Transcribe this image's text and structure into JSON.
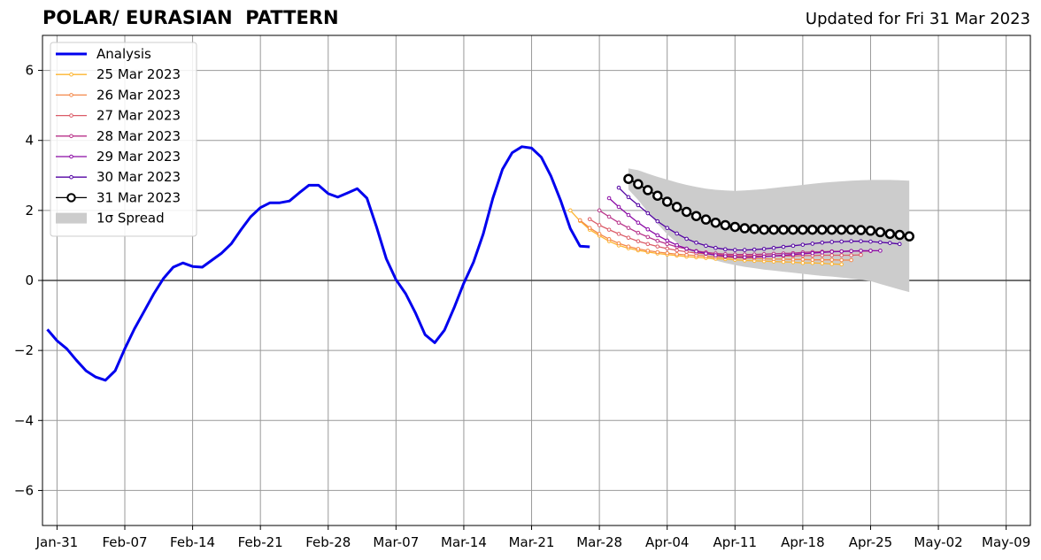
{
  "header": {
    "title": "POLAR/ EURASIAN  PATTERN",
    "updated": "Updated for Fri 31 Mar 2023"
  },
  "chart_data": {
    "type": "line",
    "title": "POLAR/ EURASIAN  PATTERN",
    "subtitle": "Updated for Fri 31 Mar 2023",
    "xlabel": "",
    "ylabel": "",
    "x_range_days": [
      -1.5,
      100.5
    ],
    "ylim": [
      -7,
      7
    ],
    "x_ticks": [
      {
        "day": 0,
        "label": "Jan-31"
      },
      {
        "day": 7,
        "label": "Feb-07"
      },
      {
        "day": 14,
        "label": "Feb-14"
      },
      {
        "day": 21,
        "label": "Feb-21"
      },
      {
        "day": 28,
        "label": "Feb-28"
      },
      {
        "day": 35,
        "label": "Mar-07"
      },
      {
        "day": 42,
        "label": "Mar-14"
      },
      {
        "day": 49,
        "label": "Mar-21"
      },
      {
        "day": 56,
        "label": "Mar-28"
      },
      {
        "day": 63,
        "label": "Apr-04"
      },
      {
        "day": 70,
        "label": "Apr-11"
      },
      {
        "day": 77,
        "label": "Apr-18"
      },
      {
        "day": 84,
        "label": "Apr-25"
      },
      {
        "day": 91,
        "label": "May-02"
      },
      {
        "day": 98,
        "label": "May-09"
      }
    ],
    "y_ticks": [
      {
        "value": 6,
        "label": "6"
      },
      {
        "value": 4,
        "label": "4"
      },
      {
        "value": 2,
        "label": "2"
      },
      {
        "value": 0,
        "label": "0"
      },
      {
        "value": -2,
        "label": "−2"
      },
      {
        "value": -4,
        "label": "−4"
      },
      {
        "value": -6,
        "label": "−6"
      }
    ],
    "grid": true,
    "legend_position": "top-left",
    "legend": [
      {
        "label": "Analysis",
        "kind": "line",
        "color": "#0000ee"
      },
      {
        "label": "25 Mar 2023",
        "kind": "marker",
        "color": "#fdb42f"
      },
      {
        "label": "26 Mar 2023",
        "kind": "marker",
        "color": "#f48849"
      },
      {
        "label": "27 Mar 2023",
        "kind": "marker",
        "color": "#db5c68"
      },
      {
        "label": "28 Mar 2023",
        "kind": "marker",
        "color": "#b83289"
      },
      {
        "label": "29 Mar 2023",
        "kind": "marker",
        "color": "#8b0aa5"
      },
      {
        "label": "30 Mar 2023",
        "kind": "marker",
        "color": "#5302a3"
      },
      {
        "label": "31 Mar 2023",
        "kind": "big",
        "color": "#000000"
      },
      {
        "label": "1σ Spread",
        "kind": "patch",
        "color": "#cccccc"
      }
    ],
    "analysis": {
      "name": "Analysis",
      "color": "#0000ee",
      "x": [
        -1,
        0,
        1,
        2,
        3,
        4,
        5,
        6,
        7,
        8,
        9,
        10,
        11,
        12,
        13,
        14,
        15,
        16,
        17,
        18,
        19,
        20,
        21,
        22,
        23,
        24,
        25,
        26,
        27,
        28,
        29,
        30,
        31,
        32,
        33,
        34,
        35,
        36,
        37,
        38,
        39,
        40,
        41,
        42,
        43,
        44,
        45,
        46,
        47,
        48,
        49,
        50,
        51,
        52,
        53,
        54,
        55
      ],
      "values": [
        -1.4,
        -1.72,
        -1.95,
        -2.28,
        -2.58,
        -2.76,
        -2.85,
        -2.58,
        -1.95,
        -1.38,
        -0.88,
        -0.38,
        0.06,
        0.38,
        0.5,
        0.4,
        0.38,
        0.58,
        0.78,
        1.05,
        1.45,
        1.82,
        2.08,
        2.22,
        2.22,
        2.27,
        2.5,
        2.72,
        2.72,
        2.48,
        2.38,
        2.5,
        2.62,
        2.35,
        1.52,
        0.62,
        0.02,
        -0.38,
        -0.92,
        -1.55,
        -1.78,
        -1.42,
        -0.78,
        -0.08,
        0.52,
        1.32,
        2.35,
        3.18,
        3.65,
        3.82,
        3.78,
        3.52,
        2.98,
        2.28,
        1.48,
        0.98,
        0.96
      ]
    },
    "forecasts": [
      {
        "name": "25 Mar 2023",
        "color": "#fdb42f",
        "x_start": 53,
        "values": [
          2.0,
          1.7,
          1.45,
          1.28,
          1.12,
          1.0,
          0.92,
          0.86,
          0.81,
          0.77,
          0.74,
          0.71,
          0.68,
          0.66,
          0.64,
          0.62,
          0.61,
          0.59,
          0.57,
          0.56,
          0.55,
          0.54,
          0.53,
          0.52,
          0.5,
          0.5,
          0.49,
          0.47,
          0.46
        ]
      },
      {
        "name": "26 Mar 2023",
        "color": "#f48849",
        "x_start": 54,
        "values": [
          1.72,
          1.5,
          1.33,
          1.18,
          1.06,
          0.97,
          0.9,
          0.85,
          0.81,
          0.78,
          0.75,
          0.73,
          0.71,
          0.69,
          0.67,
          0.66,
          0.65,
          0.64,
          0.63,
          0.62,
          0.61,
          0.61,
          0.6,
          0.6,
          0.59,
          0.59,
          0.59,
          0.58,
          0.58
        ]
      },
      {
        "name": "27 Mar 2023",
        "color": "#db5c68",
        "x_start": 55,
        "values": [
          1.75,
          1.58,
          1.45,
          1.33,
          1.22,
          1.12,
          1.04,
          0.97,
          0.91,
          0.86,
          0.82,
          0.78,
          0.76,
          0.74,
          0.72,
          0.71,
          0.7,
          0.7,
          0.7,
          0.7,
          0.7,
          0.7,
          0.71,
          0.71,
          0.72,
          0.72,
          0.72,
          0.72,
          0.73
        ]
      },
      {
        "name": "28 Mar 2023",
        "color": "#b83289",
        "x_start": 56,
        "values": [
          2.0,
          1.82,
          1.65,
          1.5,
          1.36,
          1.24,
          1.13,
          1.04,
          0.96,
          0.9,
          0.84,
          0.8,
          0.77,
          0.75,
          0.74,
          0.74,
          0.74,
          0.75,
          0.76,
          0.77,
          0.78,
          0.8,
          0.81,
          0.82,
          0.83,
          0.83,
          0.84,
          0.84,
          0.84
        ]
      },
      {
        "name": "29 Mar 2023",
        "color": "#8b0aa5",
        "x_start": 57,
        "values": [
          2.35,
          2.1,
          1.87,
          1.65,
          1.46,
          1.29,
          1.14,
          1.01,
          0.91,
          0.83,
          0.77,
          0.72,
          0.69,
          0.67,
          0.66,
          0.67,
          0.68,
          0.7,
          0.72,
          0.74,
          0.76,
          0.78,
          0.8,
          0.82,
          0.83,
          0.84,
          0.85,
          0.85,
          0.85
        ]
      },
      {
        "name": "30 Mar 2023",
        "color": "#5302a3",
        "x_start": 58,
        "values": [
          2.65,
          2.38,
          2.15,
          1.92,
          1.69,
          1.5,
          1.34,
          1.19,
          1.08,
          0.99,
          0.93,
          0.89,
          0.87,
          0.87,
          0.88,
          0.9,
          0.93,
          0.96,
          0.99,
          1.02,
          1.05,
          1.08,
          1.1,
          1.11,
          1.12,
          1.12,
          1.11,
          1.09,
          1.07,
          1.04
        ]
      }
    ],
    "latest_forecast": {
      "name": "31 Mar 2023",
      "color": "#000000",
      "x_start": 59,
      "values": [
        2.9,
        2.75,
        2.58,
        2.42,
        2.25,
        2.1,
        1.96,
        1.84,
        1.74,
        1.65,
        1.58,
        1.53,
        1.49,
        1.47,
        1.45,
        1.45,
        1.45,
        1.45,
        1.45,
        1.45,
        1.45,
        1.45,
        1.45,
        1.45,
        1.44,
        1.42,
        1.38,
        1.33,
        1.3,
        1.26
      ]
    },
    "spread": {
      "name": "1σ Spread",
      "color": "#cccccc",
      "x_start": 59,
      "upper": [
        3.2,
        3.15,
        3.05,
        2.96,
        2.88,
        2.8,
        2.73,
        2.67,
        2.62,
        2.59,
        2.57,
        2.56,
        2.57,
        2.59,
        2.61,
        2.64,
        2.67,
        2.7,
        2.73,
        2.76,
        2.79,
        2.81,
        2.83,
        2.85,
        2.86,
        2.87,
        2.87,
        2.87,
        2.86,
        2.85
      ],
      "lower": [
        2.6,
        2.3,
        1.95,
        1.62,
        1.32,
        1.08,
        0.88,
        0.75,
        0.65,
        0.57,
        0.5,
        0.44,
        0.39,
        0.35,
        0.31,
        0.28,
        0.25,
        0.22,
        0.19,
        0.16,
        0.13,
        0.11,
        0.08,
        0.05,
        0.02,
        -0.02,
        -0.1,
        -0.18,
        -0.26,
        -0.33
      ]
    }
  }
}
